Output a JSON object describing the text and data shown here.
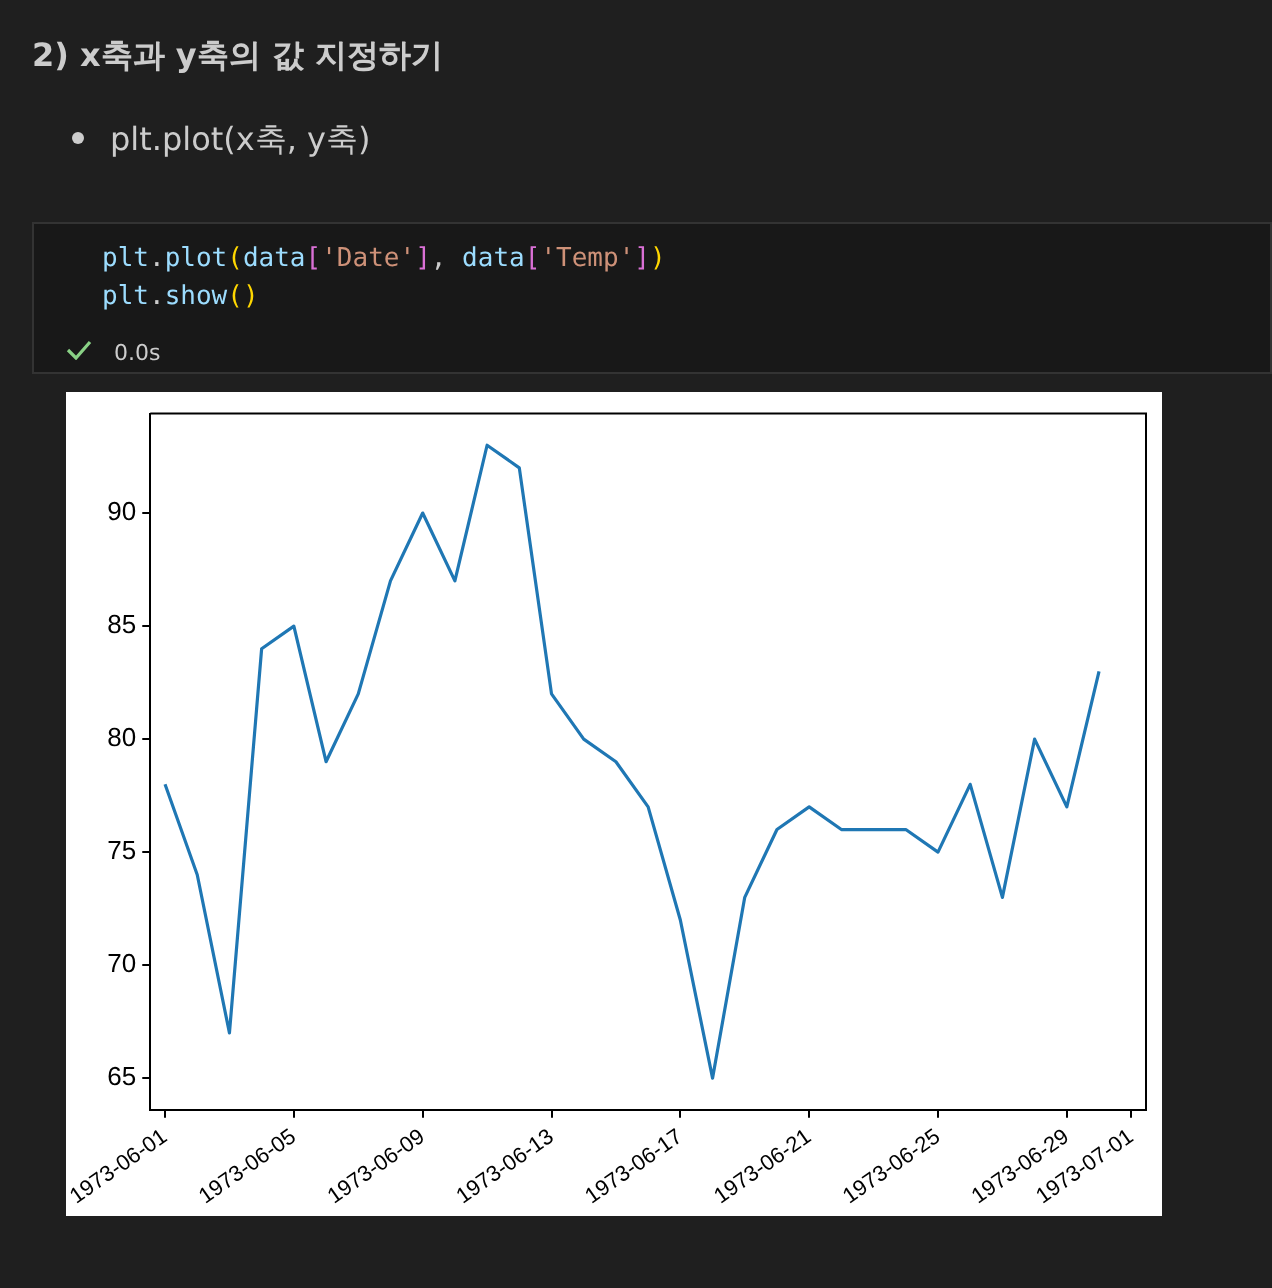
{
  "chart_data": {
    "type": "line",
    "title": "2) x축과 y축의 값 지정하기",
    "subtitle": "plt.plot(x축, y축)",
    "annotations": [
      "plt.plot(data['Date'], data['Temp'])",
      "plt.show()",
      "0.0s"
    ],
    "x": [
      "1973-06-01",
      "1973-06-02",
      "1973-06-03",
      "1973-06-04",
      "1973-06-05",
      "1973-06-06",
      "1973-06-07",
      "1973-06-08",
      "1973-06-09",
      "1973-06-10",
      "1973-06-11",
      "1973-06-12",
      "1973-06-13",
      "1973-06-14",
      "1973-06-15",
      "1973-06-16",
      "1973-06-17",
      "1973-06-18",
      "1973-06-19",
      "1973-06-20",
      "1973-06-21",
      "1973-06-22",
      "1973-06-23",
      "1973-06-24",
      "1973-06-25",
      "1973-06-26",
      "1973-06-27",
      "1973-06-28",
      "1973-06-29",
      "1973-06-30"
    ],
    "series": [
      {
        "color": "#1f77b4",
        "values": [
          78,
          74,
          67,
          84,
          85,
          79,
          82,
          87,
          90,
          87,
          93,
          92,
          82,
          80,
          79,
          77,
          72,
          65,
          73,
          76,
          77,
          76,
          76,
          76,
          75,
          78,
          73,
          80,
          77,
          83
        ]
      }
    ],
    "xlim": [
      "1973-05-31T13:00",
      "1973-07-01T11:00"
    ],
    "xticks": [
      "1973-06-01",
      "1973-06-05",
      "1973-06-09",
      "1973-06-13",
      "1973-06-17",
      "1973-06-21",
      "1973-06-25",
      "1973-06-29",
      "1973-07-01"
    ],
    "ylim": [
      63.6,
      94.4
    ],
    "yticks": [
      65,
      70,
      75,
      80,
      85,
      90
    ],
    "grid": false,
    "legend": false,
    "marker": "none",
    "line_style": "solid"
  }
}
